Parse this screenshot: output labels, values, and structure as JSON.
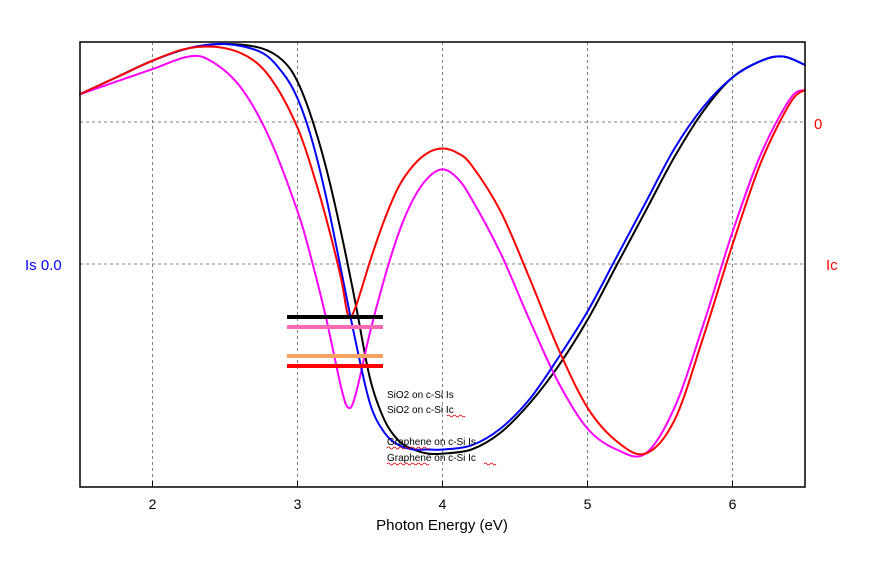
{
  "chart_data": {
    "type": "line",
    "title": "",
    "xlabel": "Photon Energy (eV)",
    "xlim": [
      1.5,
      6.5
    ],
    "x_ticks": [
      2,
      3,
      4,
      5,
      6
    ],
    "x_tick_labels": [
      "2",
      "3",
      "4",
      "5",
      "6"
    ],
    "ylim": [
      0,
      1
    ],
    "left_axis_label": "Is 0.0",
    "right_axis_label": "Ic",
    "right_tick_label": "0",
    "grid": true,
    "legend_position": "center",
    "series": [
      {
        "name": "SiO2 on c-Si Is",
        "color": "#000000",
        "axis": "left",
        "x": [
          1.5,
          1.75,
          2.0,
          2.25,
          2.5,
          2.75,
          2.9,
          3.0,
          3.1,
          3.2,
          3.3,
          3.4,
          3.5,
          3.6,
          3.7,
          3.8,
          3.9,
          4.0,
          4.2,
          4.4,
          4.6,
          4.8,
          5.0,
          5.2,
          5.4,
          5.6,
          5.8,
          6.0,
          6.2,
          6.35,
          6.5
        ],
        "values": [
          0.88,
          0.92,
          0.96,
          0.99,
          1.0,
          0.99,
          0.96,
          0.91,
          0.82,
          0.7,
          0.55,
          0.38,
          0.2,
          0.1,
          0.05,
          0.03,
          0.02,
          0.02,
          0.03,
          0.07,
          0.14,
          0.23,
          0.34,
          0.47,
          0.6,
          0.73,
          0.84,
          0.92,
          0.96,
          0.97,
          0.95
        ]
      },
      {
        "name": "SiO2 on c-Si Ic",
        "color": "#ff00ff",
        "axis": "right",
        "x": [
          1.5,
          1.75,
          2.0,
          2.25,
          2.4,
          2.6,
          2.8,
          3.0,
          3.1,
          3.2,
          3.3,
          3.35,
          3.4,
          3.5,
          3.6,
          3.7,
          3.8,
          3.9,
          4.0,
          4.1,
          4.2,
          4.4,
          4.6,
          4.8,
          5.0,
          5.2,
          5.4,
          5.6,
          5.8,
          6.0,
          6.2,
          6.4,
          6.5
        ],
        "values": [
          0.88,
          0.91,
          0.94,
          0.97,
          0.96,
          0.9,
          0.78,
          0.6,
          0.48,
          0.34,
          0.18,
          0.13,
          0.16,
          0.31,
          0.44,
          0.55,
          0.63,
          0.68,
          0.7,
          0.68,
          0.63,
          0.5,
          0.34,
          0.19,
          0.08,
          0.03,
          0.02,
          0.13,
          0.33,
          0.55,
          0.74,
          0.87,
          0.89
        ]
      },
      {
        "name": "Graphene on c-Si Is",
        "color": "#0000ff",
        "axis": "left",
        "x": [
          1.5,
          1.75,
          2.0,
          2.25,
          2.5,
          2.75,
          2.9,
          3.0,
          3.1,
          3.2,
          3.3,
          3.4,
          3.5,
          3.6,
          3.7,
          3.8,
          3.9,
          4.0,
          4.2,
          4.4,
          4.6,
          4.8,
          5.0,
          5.2,
          5.4,
          5.6,
          5.8,
          6.0,
          6.2,
          6.35,
          6.5
        ],
        "values": [
          0.88,
          0.92,
          0.96,
          0.99,
          1.0,
          0.98,
          0.93,
          0.87,
          0.77,
          0.63,
          0.46,
          0.29,
          0.14,
          0.07,
          0.04,
          0.03,
          0.03,
          0.03,
          0.04,
          0.08,
          0.15,
          0.25,
          0.36,
          0.49,
          0.62,
          0.75,
          0.85,
          0.92,
          0.96,
          0.97,
          0.95
        ]
      },
      {
        "name": "Graphene on c-Si Ic",
        "color": "#ff0000",
        "axis": "right",
        "x": [
          1.5,
          1.75,
          2.0,
          2.25,
          2.5,
          2.7,
          2.85,
          3.0,
          3.1,
          3.2,
          3.3,
          3.35,
          3.4,
          3.5,
          3.6,
          3.7,
          3.8,
          3.9,
          4.0,
          4.1,
          4.2,
          4.4,
          4.6,
          4.8,
          5.0,
          5.2,
          5.4,
          5.6,
          5.8,
          6.0,
          6.2,
          6.4,
          6.5
        ],
        "values": [
          0.88,
          0.92,
          0.96,
          0.99,
          0.99,
          0.96,
          0.9,
          0.8,
          0.7,
          0.58,
          0.44,
          0.35,
          0.37,
          0.48,
          0.58,
          0.66,
          0.71,
          0.74,
          0.75,
          0.74,
          0.71,
          0.6,
          0.44,
          0.27,
          0.13,
          0.05,
          0.02,
          0.1,
          0.3,
          0.52,
          0.72,
          0.86,
          0.89
        ]
      }
    ],
    "legend": {
      "entries": [
        {
          "label": "SiO2 on c-Si Is",
          "color": "#000000"
        },
        {
          "label": "SiO2 on c-Si Ic",
          "color": "#ff69b4"
        },
        {
          "label": "Graphene on c-Si Is",
          "color": "#f4a460"
        },
        {
          "label": "Graphene on c-Si Ic",
          "color": "#ff0000"
        }
      ]
    }
  }
}
